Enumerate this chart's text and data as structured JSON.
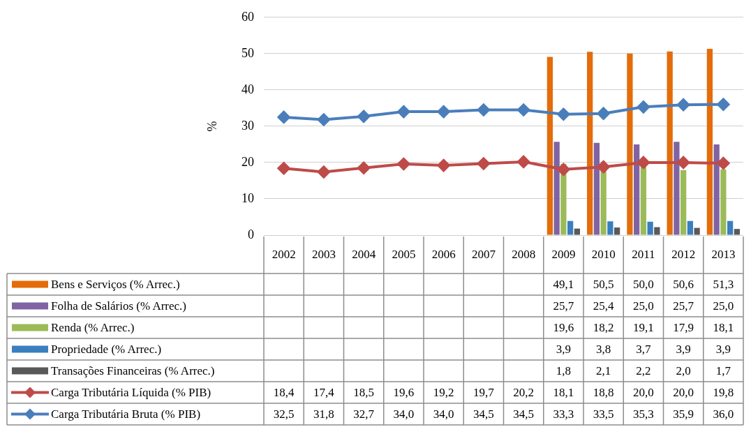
{
  "chart_data": {
    "type": "bar",
    "ylabel": "%",
    "categories": [
      "2002",
      "2003",
      "2004",
      "2005",
      "2006",
      "2007",
      "2008",
      "2009",
      "2010",
      "2011",
      "2012",
      "2013"
    ],
    "ylim": [
      0,
      60
    ],
    "yticks": [
      0,
      10,
      20,
      30,
      40,
      50,
      60
    ],
    "grid": "y",
    "legend": "bottom",
    "series": [
      {
        "name": "Bens e Serviços (% Arrec.)",
        "color": "#e46c0a",
        "values": [
          null,
          null,
          null,
          null,
          null,
          null,
          null,
          49.1,
          50.5,
          50.0,
          50.6,
          51.3
        ],
        "value_labels": [
          null,
          null,
          null,
          null,
          null,
          null,
          null,
          "49,1",
          "50,5",
          "50,0",
          "50,6",
          "51,3"
        ]
      },
      {
        "name": "Folha de Salários (% Arrec.)",
        "color": "#8064a2",
        "values": [
          null,
          null,
          null,
          null,
          null,
          null,
          null,
          25.7,
          25.4,
          25.0,
          25.7,
          25.0
        ],
        "value_labels": [
          null,
          null,
          null,
          null,
          null,
          null,
          null,
          "25,7",
          "25,4",
          "25,0",
          "25,7",
          "25,0"
        ]
      },
      {
        "name": "Renda (% Arrec.)",
        "color": "#9bbb59",
        "values": [
          null,
          null,
          null,
          null,
          null,
          null,
          null,
          19.6,
          18.2,
          19.1,
          17.9,
          18.1
        ],
        "value_labels": [
          null,
          null,
          null,
          null,
          null,
          null,
          null,
          "19,6",
          "18,2",
          "19,1",
          "17,9",
          "18,1"
        ]
      },
      {
        "name": "Propriedade (% Arrec.)",
        "color": "#3a7fbf",
        "values": [
          null,
          null,
          null,
          null,
          null,
          null,
          null,
          3.9,
          3.8,
          3.7,
          3.9,
          3.9
        ],
        "value_labels": [
          null,
          null,
          null,
          null,
          null,
          null,
          null,
          "3,9",
          "3,8",
          "3,7",
          "3,9",
          "3,9"
        ]
      },
      {
        "name": "Transações Financeiras (% Arrec.)",
        "color": "#595959",
        "values": [
          null,
          null,
          null,
          null,
          null,
          null,
          null,
          1.8,
          2.1,
          2.2,
          2.0,
          1.7
        ],
        "value_labels": [
          null,
          null,
          null,
          null,
          null,
          null,
          null,
          "1,8",
          "2,1",
          "2,2",
          "2,0",
          "1,7"
        ]
      },
      {
        "name": "Carga Tributária Líquida (% PIB)",
        "type": "line",
        "marker": "diamond",
        "color": "#be4b48",
        "values": [
          18.4,
          17.4,
          18.5,
          19.6,
          19.2,
          19.7,
          20.2,
          18.1,
          18.8,
          20.0,
          20.0,
          19.8
        ],
        "value_labels": [
          "18,4",
          "17,4",
          "18,5",
          "19,6",
          "19,2",
          "19,7",
          "20,2",
          "18,1",
          "18,8",
          "20,0",
          "20,0",
          "19,8"
        ]
      },
      {
        "name": "Carga Tributária Bruta (% PIB)",
        "type": "line",
        "marker": "diamond",
        "color": "#4a7ebb",
        "values": [
          32.5,
          31.8,
          32.7,
          34.0,
          34.0,
          34.5,
          34.5,
          33.3,
          33.5,
          35.3,
          35.9,
          36.0
        ],
        "value_labels": [
          "32,5",
          "31,8",
          "32,7",
          "34,0",
          "34,0",
          "34,5",
          "34,5",
          "33,3",
          "33,5",
          "35,3",
          "35,9",
          "36,0"
        ]
      }
    ]
  }
}
